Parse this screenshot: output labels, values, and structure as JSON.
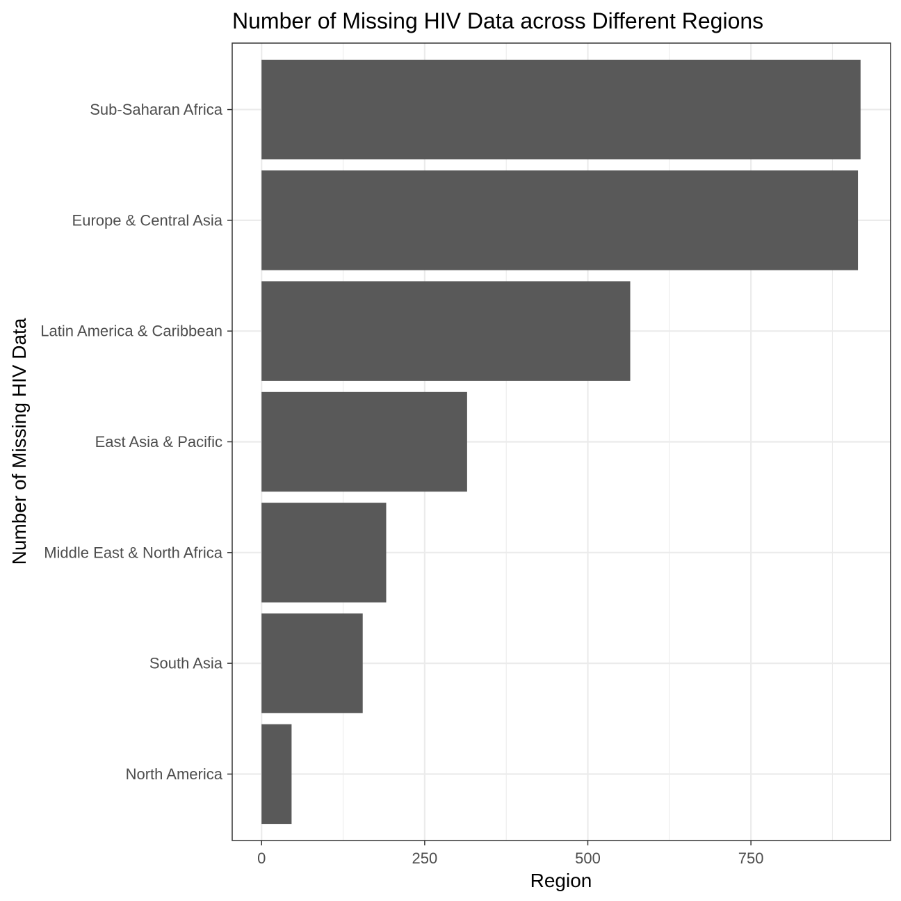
{
  "chart_data": {
    "type": "bar",
    "orientation": "horizontal",
    "title": "Number of Missing HIV Data across Different Regions",
    "xlabel": "Region",
    "ylabel": "Number of Missing HIV Data",
    "categories": [
      "Sub-Saharan Africa",
      "Europe & Central Asia",
      "Latin America & Caribbean",
      "East Asia & Pacific",
      "Middle East & North Africa",
      "South Asia",
      "North America"
    ],
    "values": [
      918,
      914,
      565,
      315,
      191,
      155,
      46
    ],
    "xlim": [
      -45,
      964
    ],
    "x_ticks": [
      0,
      250,
      500,
      750
    ],
    "x_tick_labels": [
      "0",
      "250",
      "500",
      "750"
    ],
    "grid": true,
    "bar_color": "#595959",
    "grid_color": "#ebebeb",
    "panel_border_color": "#333333"
  }
}
